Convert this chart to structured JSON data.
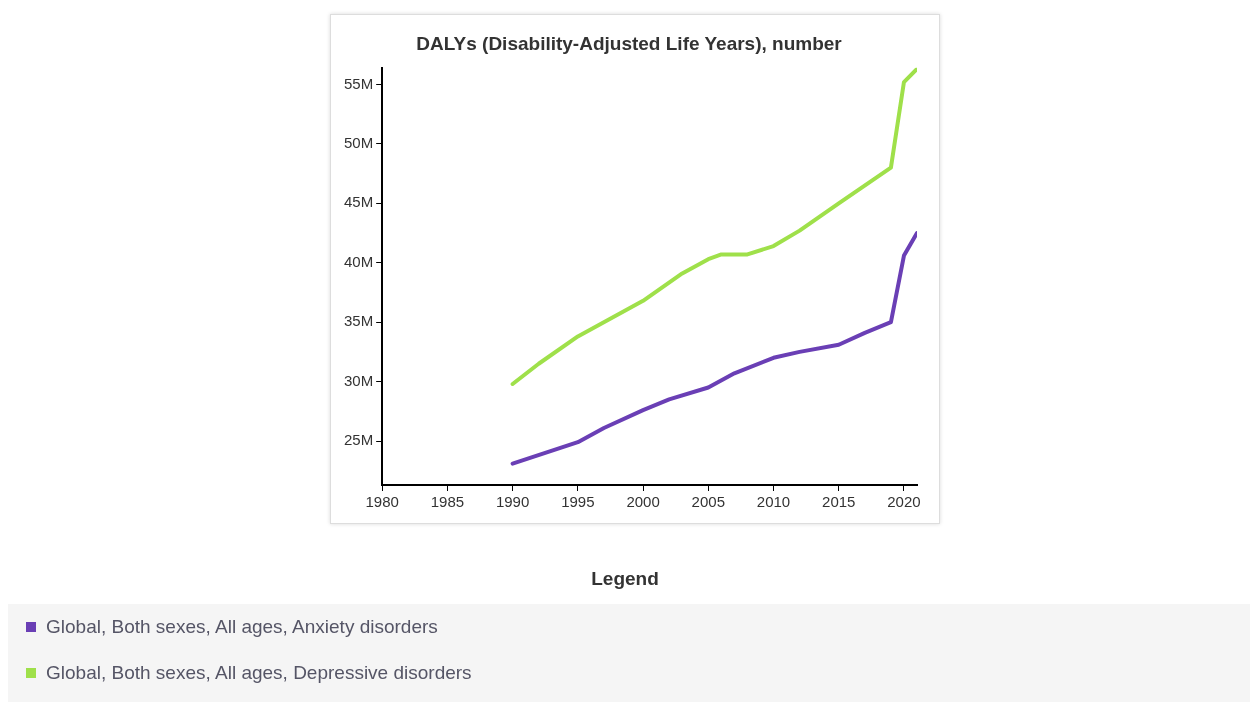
{
  "chart_data": {
    "type": "line",
    "title": "DALYs (Disability-Adjusted Life Years), number",
    "legend_title": "Legend",
    "legend": "bottom",
    "grid": false,
    "marker": "none",
    "xlim": [
      1980,
      2021
    ],
    "xticks": [
      1980,
      1985,
      1990,
      1995,
      2000,
      2005,
      2010,
      2015,
      2020
    ],
    "ylim": [
      21.3,
      56.4
    ],
    "yticks": [
      {
        "value": 25,
        "label": "25M"
      },
      {
        "value": 30,
        "label": "30M"
      },
      {
        "value": 35,
        "label": "35M"
      },
      {
        "value": 40,
        "label": "40M"
      },
      {
        "value": 45,
        "label": "45M"
      },
      {
        "value": 50,
        "label": "50M"
      },
      {
        "value": 55,
        "label": "55M"
      }
    ],
    "series": [
      {
        "name": "Global, Both sexes, All ages, Anxiety disorders",
        "color": "#6a3fb5",
        "x": [
          1990,
          1995,
          1997,
          2000,
          2002,
          2005,
          2007,
          2010,
          2012,
          2015,
          2017,
          2019,
          2020,
          2021
        ],
        "values": [
          23.1,
          24.9,
          26.1,
          27.6,
          28.5,
          29.5,
          30.7,
          32.0,
          32.5,
          33.1,
          34.1,
          35.0,
          40.6,
          42.5
        ]
      },
      {
        "name": "Global, Both sexes, All ages, Depressive disorders",
        "color": "#9fe04a",
        "x": [
          1990,
          1992,
          1995,
          2000,
          2003,
          2005,
          2006,
          2008,
          2010,
          2012,
          2015,
          2019,
          2020,
          2021
        ],
        "values": [
          29.8,
          31.5,
          33.8,
          36.8,
          39.1,
          40.3,
          40.7,
          40.7,
          41.4,
          42.7,
          45.0,
          48.0,
          55.2,
          56.3
        ]
      }
    ]
  }
}
